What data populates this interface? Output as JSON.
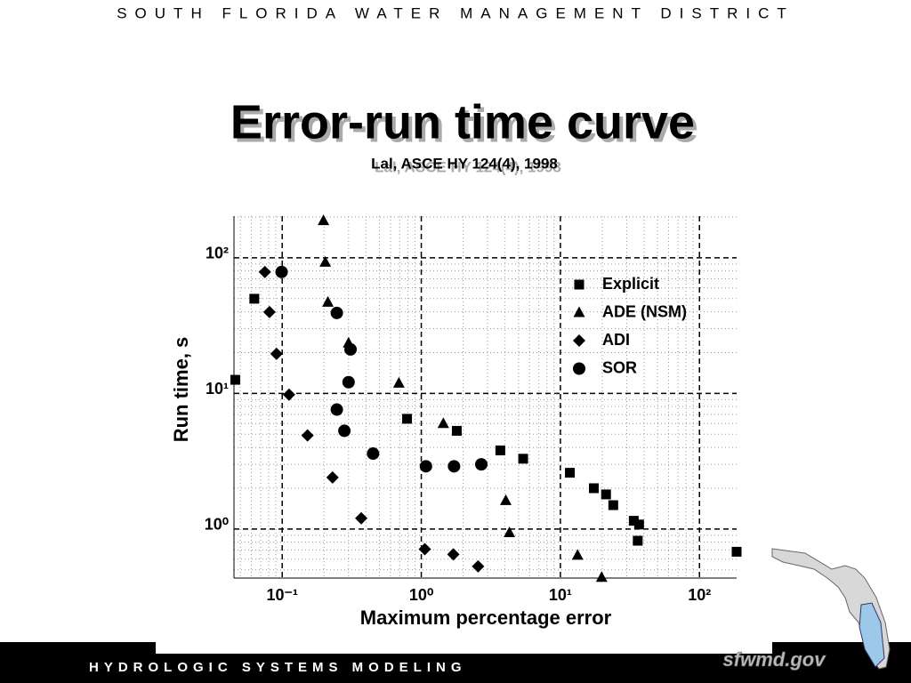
{
  "header": {
    "organization": "SOUTH FLORIDA WATER MANAGEMENT DISTRICT"
  },
  "chart_data": {
    "type": "scatter",
    "title": "Error-run time curve",
    "subtitle": "Lal, ASCE HY 124(4), 1998",
    "x_label": "Maximum percentage error",
    "y_label": "Run time, s",
    "log_x": true,
    "log_y": true,
    "grid": true,
    "minor_grid": true,
    "legend": "upper right",
    "xlim": [
      0.045,
      185
    ],
    "ylim": [
      0.435,
      203
    ],
    "xticks": [
      {
        "value": 0.1,
        "label": "10⁻¹"
      },
      {
        "value": 1,
        "label": "10⁰"
      },
      {
        "value": 10,
        "label": "10¹"
      },
      {
        "value": 100,
        "label": "10²"
      }
    ],
    "yticks": [
      {
        "value": 1,
        "label": "10⁰"
      },
      {
        "value": 10,
        "label": "10¹"
      },
      {
        "value": 100,
        "label": "10²"
      }
    ],
    "series": [
      {
        "name": "Explicit",
        "color": "#000000",
        "marker": "square",
        "x": [
          0.046,
          0.063,
          0.79,
          1.8,
          3.7,
          5.4,
          11.7,
          17.4,
          21.3,
          24,
          33.7,
          36.8,
          36,
          185
        ],
        "values": [
          12.6,
          49.9,
          6.5,
          5.3,
          3.8,
          3.3,
          2.6,
          2.0,
          1.8,
          1.5,
          1.15,
          1.08,
          0.82,
          0.68
        ]
      },
      {
        "name": "ADE (NSM)",
        "color": "#000000",
        "marker": "triangle",
        "x": [
          0.198,
          0.204,
          0.213,
          0.3,
          0.69,
          1.44,
          4.05,
          4.3,
          13.3,
          19.8
        ],
        "values": [
          188,
          92.7,
          47,
          23.5,
          11.9,
          6.0,
          1.62,
          0.94,
          0.64,
          0.44
        ]
      },
      {
        "name": "ADI",
        "color": "#000000",
        "marker": "diamond",
        "x": [
          0.075,
          0.081,
          0.091,
          0.112,
          0.152,
          0.23,
          0.37,
          1.06,
          1.7,
          2.56
        ],
        "values": [
          78.6,
          39.8,
          19.6,
          9.8,
          4.9,
          2.4,
          1.2,
          0.71,
          0.65,
          0.53
        ]
      },
      {
        "name": "SOR",
        "color": "#000000",
        "marker": "circle",
        "x": [
          0.099,
          0.247,
          0.31,
          0.3,
          0.247,
          0.28,
          0.45,
          1.08,
          1.72,
          2.7
        ],
        "values": [
          78.6,
          39.2,
          21.1,
          12.1,
          7.6,
          5.3,
          3.6,
          2.9,
          2.9,
          3.0
        ]
      }
    ]
  },
  "footer": {
    "program": "HYDROLOGIC SYSTEMS MODELING",
    "website": "sfwmd.gov"
  }
}
